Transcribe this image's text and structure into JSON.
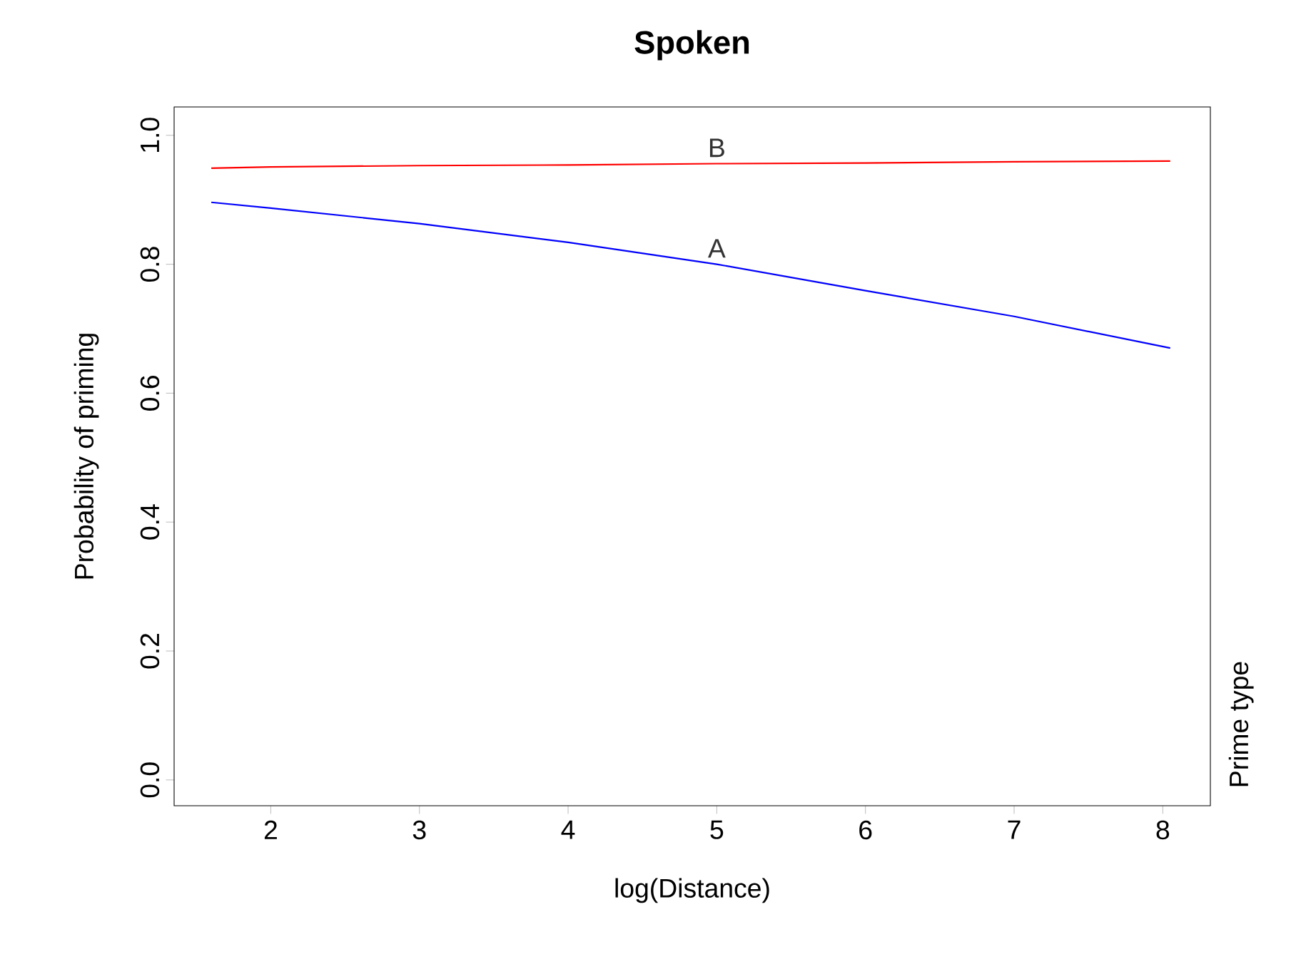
{
  "chart_data": {
    "type": "line",
    "title": "Spoken",
    "xlabel": "log(Distance)",
    "ylabel": "Probability of priming",
    "legend_title": "Prime type",
    "x": [
      1.6,
      2,
      3,
      4,
      5,
      6,
      7,
      8.05
    ],
    "series": [
      {
        "name": "A",
        "color": "#0000ff",
        "values": [
          0.896,
          0.887,
          0.863,
          0.834,
          0.8,
          0.759,
          0.719,
          0.67
        ]
      },
      {
        "name": "B",
        "color": "#ff0000",
        "values": [
          0.949,
          0.951,
          0.953,
          0.954,
          0.956,
          0.957,
          0.959,
          0.96
        ]
      }
    ],
    "xlim": [
      1.35,
      8.32
    ],
    "ylim": [
      -0.04,
      1.044
    ],
    "xticks": [
      2,
      3,
      4,
      5,
      6,
      7,
      8
    ],
    "yticks": [
      {
        "value": 0,
        "label": "0.0"
      },
      0.2,
      0.4,
      0.6,
      0.8,
      {
        "value": 1,
        "label": "1.0"
      }
    ],
    "grid": false,
    "marker": "none",
    "line_style": "solid"
  }
}
